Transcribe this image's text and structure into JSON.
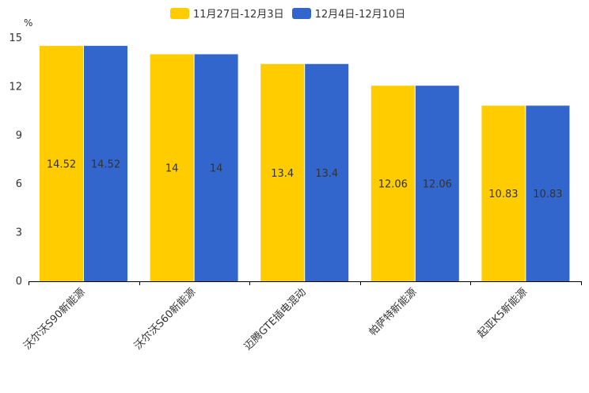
{
  "chart_data": {
    "type": "bar",
    "title": "",
    "ylabel": "%",
    "xlabel": "",
    "ylim": [
      0,
      15
    ],
    "yticks": [
      0,
      3,
      6,
      9,
      12,
      15
    ],
    "categories": [
      "沃尔沃S90新能源",
      "沃尔沃S60新能源",
      "迈腾GTE插电混动",
      "帕萨特新能源",
      "起亚K5新能源"
    ],
    "series": [
      {
        "name": "11月27日-12月3日",
        "color": "#FFCC00",
        "values": [
          14.52,
          14,
          13.4,
          12.06,
          10.83
        ]
      },
      {
        "name": "12月4日-12月10日",
        "color": "#3366CC",
        "values": [
          14.52,
          14,
          13.4,
          12.06,
          10.83
        ]
      }
    ],
    "legend_position": "top-center",
    "grid": false
  }
}
